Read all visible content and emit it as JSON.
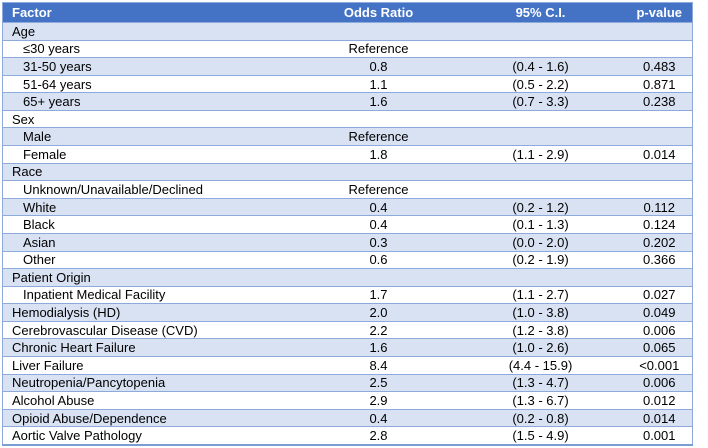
{
  "colors": {
    "header_bg": "#4472C4",
    "header_text": "#FFFFFF",
    "band_bg": "#D9E2F3",
    "row_bg": "#FFFFFF",
    "border": "#8EAADB",
    "outer_bottom_border": "#7C9CD6",
    "body_text": "#000000"
  },
  "header": {
    "factor": "Factor",
    "odds_ratio": "Odds Ratio",
    "ci": "95% C.I.",
    "p_value": "p-value"
  },
  "rows": [
    {
      "factor": "Age",
      "indent": false,
      "odds_ratio": "",
      "ci": "",
      "p_value": ""
    },
    {
      "factor": "≤30 years",
      "indent": true,
      "odds_ratio": "Reference",
      "ci": "",
      "p_value": ""
    },
    {
      "factor": "31-50 years",
      "indent": true,
      "odds_ratio": "0.8",
      "ci": "(0.4 - 1.6)",
      "p_value": "0.483"
    },
    {
      "factor": "51-64 years",
      "indent": true,
      "odds_ratio": "1.1",
      "ci": "(0.5 - 2.2)",
      "p_value": "0.871"
    },
    {
      "factor": "65+ years",
      "indent": true,
      "odds_ratio": "1.6",
      "ci": "(0.7 - 3.3)",
      "p_value": "0.238"
    },
    {
      "factor": "Sex",
      "indent": false,
      "odds_ratio": "",
      "ci": "",
      "p_value": ""
    },
    {
      "factor": "Male",
      "indent": true,
      "odds_ratio": "Reference",
      "ci": "",
      "p_value": ""
    },
    {
      "factor": "Female",
      "indent": true,
      "odds_ratio": "1.8",
      "ci": "(1.1 - 2.9)",
      "p_value": "0.014"
    },
    {
      "factor": "Race",
      "indent": false,
      "odds_ratio": "",
      "ci": "",
      "p_value": ""
    },
    {
      "factor": "Unknown/Unavailable/Declined",
      "indent": true,
      "odds_ratio": "Reference",
      "ci": "",
      "p_value": ""
    },
    {
      "factor": "White",
      "indent": true,
      "odds_ratio": "0.4",
      "ci": "(0.2 - 1.2)",
      "p_value": "0.112"
    },
    {
      "factor": "Black",
      "indent": true,
      "odds_ratio": "0.4",
      "ci": "(0.1 - 1.3)",
      "p_value": "0.124"
    },
    {
      "factor": "Asian",
      "indent": true,
      "odds_ratio": "0.3",
      "ci": "(0.0 - 2.0)",
      "p_value": "0.202"
    },
    {
      "factor": "Other",
      "indent": true,
      "odds_ratio": "0.6",
      "ci": "(0.2 - 1.9)",
      "p_value": "0.366"
    },
    {
      "factor": "Patient Origin",
      "indent": false,
      "odds_ratio": "",
      "ci": "",
      "p_value": ""
    },
    {
      "factor": "Inpatient Medical Facility",
      "indent": true,
      "odds_ratio": "1.7",
      "ci": "(1.1 - 2.7)",
      "p_value": "0.027"
    },
    {
      "factor": "Hemodialysis (HD)",
      "indent": false,
      "odds_ratio": "2.0",
      "ci": "(1.0 - 3.8)",
      "p_value": "0.049"
    },
    {
      "factor": "Cerebrovascular Disease (CVD)",
      "indent": false,
      "odds_ratio": "2.2",
      "ci": "(1.2 - 3.8)",
      "p_value": "0.006"
    },
    {
      "factor": "Chronic Heart Failure",
      "indent": false,
      "odds_ratio": "1.6",
      "ci": "(1.0 - 2.6)",
      "p_value": "0.065"
    },
    {
      "factor": "Liver Failure",
      "indent": false,
      "odds_ratio": "8.4",
      "ci": "(4.4 - 15.9)",
      "p_value": "<0.001"
    },
    {
      "factor": "Neutropenia/Pancytopenia",
      "indent": false,
      "odds_ratio": "2.5",
      "ci": "(1.3 - 4.7)",
      "p_value": "0.006"
    },
    {
      "factor": "Alcohol Abuse",
      "indent": false,
      "odds_ratio": "2.9",
      "ci": "(1.3 - 6.7)",
      "p_value": "0.012"
    },
    {
      "factor": "Opioid Abuse/Dependence",
      "indent": false,
      "odds_ratio": "0.4",
      "ci": "(0.2 - 0.8)",
      "p_value": "0.014"
    },
    {
      "factor": "Aortic Valve Pathology",
      "indent": false,
      "odds_ratio": "2.8",
      "ci": "(1.5 - 4.9)",
      "p_value": "0.001"
    }
  ]
}
